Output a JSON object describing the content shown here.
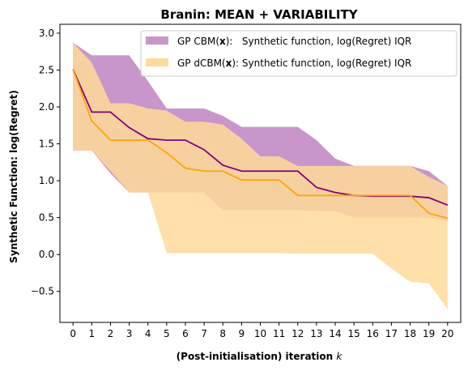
{
  "chart_data": {
    "type": "area",
    "title": "Branin: MEAN + VARIABILITY",
    "xlabel": "(Post-initialisation) iteration",
    "xlabel_var": "k",
    "ylabel": "Synthetic Function: log(Regret)",
    "xlim": [
      -0.7,
      20.7
    ],
    "ylim": [
      -0.92,
      3.12
    ],
    "x_ticks": [
      0,
      1,
      2,
      3,
      4,
      5,
      6,
      7,
      8,
      9,
      10,
      11,
      12,
      13,
      14,
      15,
      16,
      17,
      18,
      19,
      20
    ],
    "y_ticks": [
      -0.5,
      0.0,
      0.5,
      1.0,
      1.5,
      2.0,
      2.5,
      3.0
    ],
    "y_tick_labels": [
      "−0.5",
      "0.0",
      "0.5",
      "1.0",
      "1.5",
      "2.0",
      "2.5",
      "3.0"
    ],
    "legend_position": "top-right",
    "x": [
      0,
      1,
      2,
      3,
      4,
      5,
      6,
      7,
      8,
      9,
      10,
      11,
      12,
      13,
      14,
      15,
      16,
      17,
      18,
      19,
      20
    ],
    "series": [
      {
        "name_prefix": "GP CBM(",
        "name_bold": "x",
        "name_suffix": "):   Synthetic function, log(Regret) IQR",
        "band_color": "#c996cb",
        "line_color": "#800080",
        "upper": [
          2.87,
          2.7,
          2.7,
          2.7,
          2.35,
          1.98,
          1.98,
          1.98,
          1.88,
          1.73,
          1.73,
          1.73,
          1.73,
          1.55,
          1.3,
          1.2,
          1.2,
          1.2,
          1.2,
          1.13,
          0.93
        ],
        "lower": [
          1.41,
          1.41,
          1.1,
          0.84,
          0.84,
          0.84,
          0.84,
          0.84,
          0.6,
          0.6,
          0.6,
          0.6,
          0.6,
          0.59,
          0.59,
          0.5,
          0.5,
          0.5,
          0.5,
          0.5,
          0.45
        ],
        "median": [
          2.51,
          1.93,
          1.93,
          1.72,
          1.57,
          1.55,
          1.55,
          1.42,
          1.21,
          1.13,
          1.13,
          1.13,
          1.13,
          0.91,
          0.84,
          0.8,
          0.79,
          0.79,
          0.79,
          0.77,
          0.67
        ]
      },
      {
        "name_prefix": "GP dCBM(",
        "name_bold": "x",
        "name_suffix": "): Synthetic function, log(Regret) IQR",
        "band_color": "#ffdb99",
        "line_color": "#ffa500",
        "upper": [
          2.87,
          2.6,
          2.05,
          2.05,
          1.98,
          1.95,
          1.8,
          1.8,
          1.76,
          1.57,
          1.33,
          1.33,
          1.2,
          1.2,
          1.2,
          1.2,
          1.2,
          1.2,
          1.2,
          1.05,
          0.93
        ],
        "lower": [
          1.41,
          1.41,
          1.13,
          0.84,
          0.84,
          0.02,
          0.02,
          0.02,
          0.02,
          0.02,
          0.02,
          0.02,
          0.01,
          0.01,
          0.01,
          0.01,
          0.01,
          -0.19,
          -0.37,
          -0.39,
          -0.74
        ],
        "median": [
          2.51,
          1.81,
          1.55,
          1.55,
          1.55,
          1.38,
          1.17,
          1.13,
          1.13,
          1.01,
          1.01,
          1.01,
          0.8,
          0.8,
          0.8,
          0.8,
          0.8,
          0.8,
          0.8,
          0.56,
          0.49
        ]
      }
    ]
  }
}
